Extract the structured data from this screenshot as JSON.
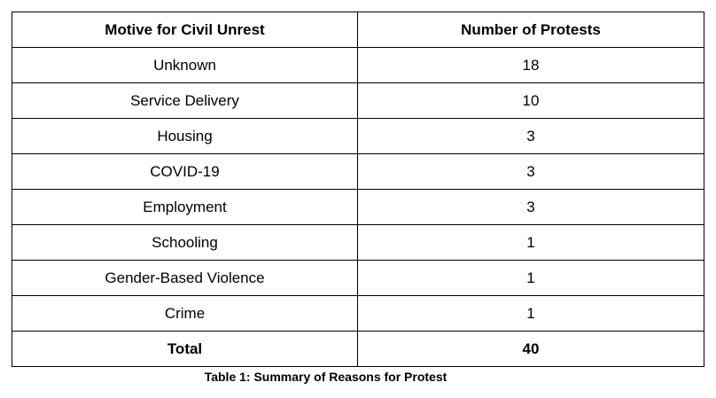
{
  "table": {
    "headers": [
      "Motive for Civil Unrest",
      "Number of Protests"
    ],
    "rows": [
      {
        "motive": "Unknown",
        "count": "18"
      },
      {
        "motive": "Service Delivery",
        "count": "10"
      },
      {
        "motive": "Housing",
        "count": "3"
      },
      {
        "motive": "COVID-19",
        "count": "3"
      },
      {
        "motive": "Employment",
        "count": "3"
      },
      {
        "motive": "Schooling",
        "count": "1"
      },
      {
        "motive": "Gender-Based Violence",
        "count": "1"
      },
      {
        "motive": "Crime",
        "count": "1"
      }
    ],
    "total": {
      "label": "Total",
      "count": "40"
    }
  },
  "caption": "Table 1: Summary of Reasons for Protest"
}
